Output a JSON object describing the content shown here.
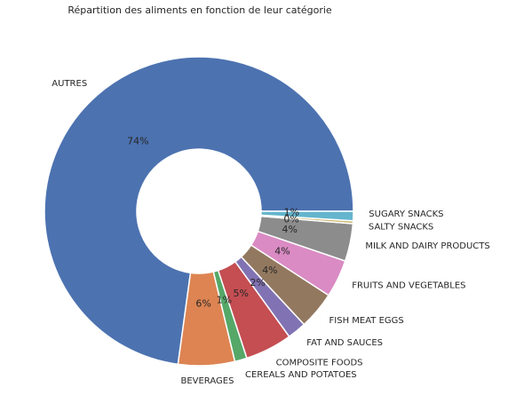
{
  "chart_data": {
    "type": "pie",
    "donut": true,
    "title": "Répartition des aliments en fonction de leur catégorie",
    "categories": [
      "AUTRES",
      "BEVERAGES",
      "CEREALS AND POTATOES",
      "COMPOSITE FOODS",
      "FAT AND SAUCES",
      "FISH MEAT EGGS",
      "FRUITS AND VEGETABLES",
      "MILK AND DAIRY PRODUCTS",
      "SALTY SNACKS",
      "SUGARY SNACKS"
    ],
    "values": [
      74,
      6,
      1.3,
      5,
      2,
      4,
      4,
      4,
      0.3,
      1
    ],
    "percent_labels": [
      "74%",
      "6%",
      "1%",
      "5%",
      "2%",
      "4%",
      "4%",
      "4%",
      "0%",
      "1%"
    ],
    "colors": [
      "#4c72b0",
      "#dd8452",
      "#55a868",
      "#c44e52",
      "#8172b3",
      "#937860",
      "#da8bc3",
      "#8c8c8c",
      "#ccb974",
      "#64b5cd"
    ],
    "start_angle_deg": 0,
    "direction": "counterclockwise"
  }
}
